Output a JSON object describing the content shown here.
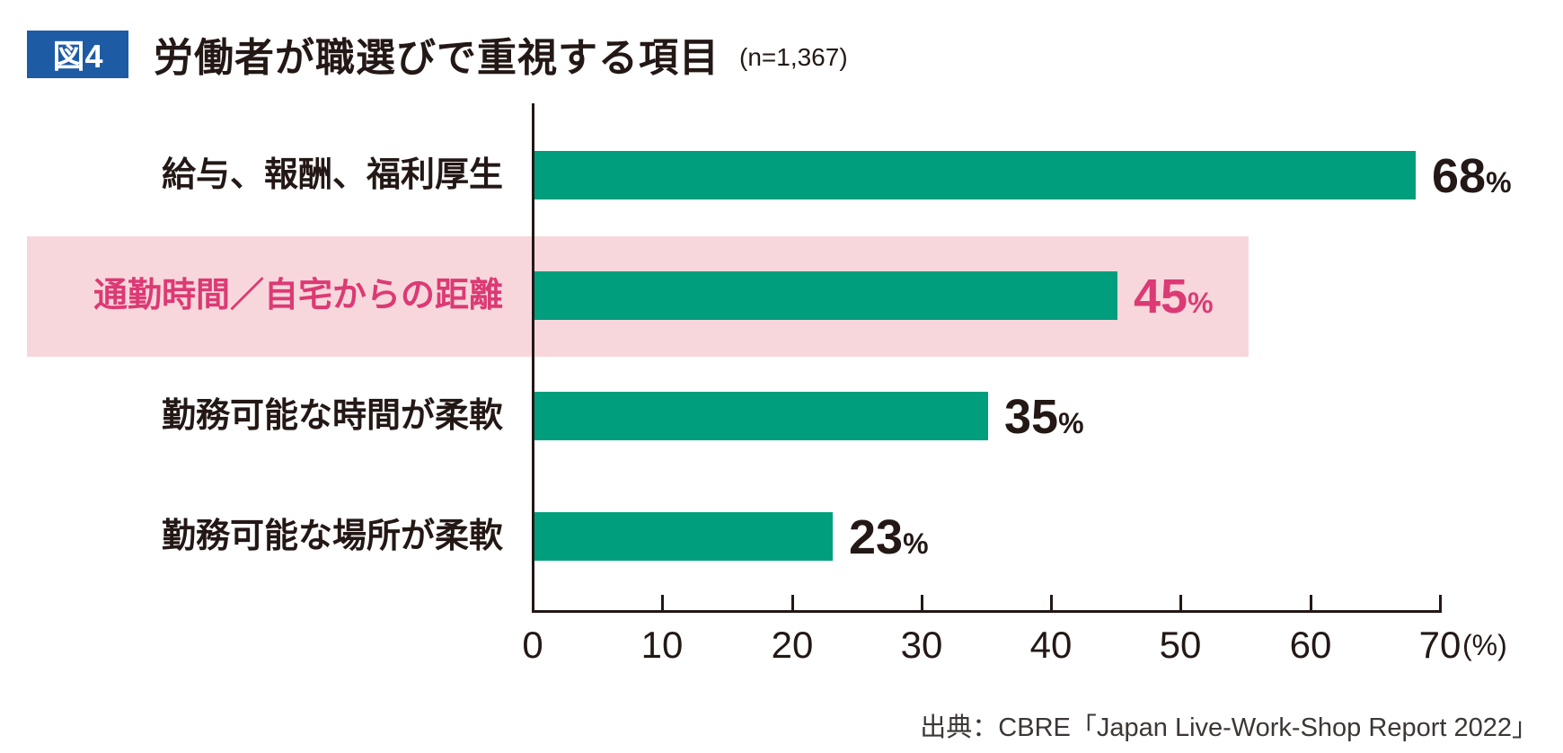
{
  "header": {
    "figure_label": "図4",
    "title": "労働者が職選びで重視する項目",
    "sample_size": "(n=1,367)"
  },
  "chart_data": {
    "type": "bar",
    "orientation": "horizontal",
    "title": "労働者が職選びで重視する項目",
    "sample_size": "n=1,367",
    "categories": [
      "給与、報酬、福利厚生",
      "通勤時間／自宅からの距離",
      "勤務可能な時間が柔軟",
      "勤務可能な場所が柔軟"
    ],
    "values": [
      68,
      45,
      35,
      23
    ],
    "unit": "%",
    "highlighted_index": 1,
    "x_axis": {
      "min": 0,
      "max": 70,
      "tick_labels": [
        "0",
        "10",
        "20",
        "30",
        "40",
        "50",
        "60",
        "70"
      ],
      "unit_label": "(%)",
      "grid": false
    },
    "legend": "none"
  },
  "footer": {
    "source": "出典：CBRE「Japan Live-Work-Shop Report 2022」"
  },
  "colors": {
    "bar": "#009e7d",
    "highlight_band": "#f8d7dc",
    "highlight_text": "#dc3a74",
    "badge_bg": "#1d5ba4",
    "badge_text": "#ffffff",
    "ink": "#231815"
  }
}
